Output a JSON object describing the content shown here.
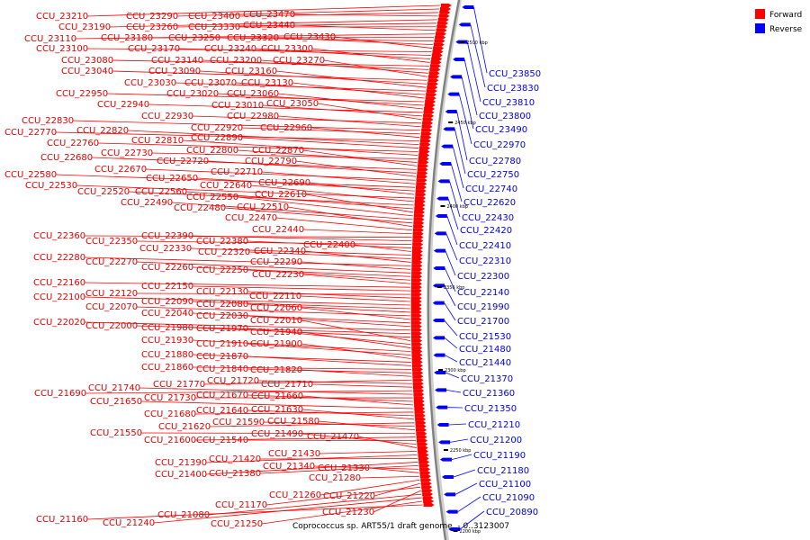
{
  "caption": "Coprococcus sp. ART55/1 draft genome. - 0..3123007",
  "legend": [
    {
      "label": "Forward",
      "color": "#ff0000"
    },
    {
      "label": "Reverse",
      "color": "#0000ff"
    }
  ],
  "ticks": [
    "2500 kbp",
    "2450 kbp",
    "2400 kbp",
    "2350 kbp",
    "2300 kbp",
    "2250 kbp",
    "2200 kbp"
  ],
  "forward_labels": [
    "CCU_23210",
    "CCU_23290",
    "CCU_23400",
    "CCU_23470",
    "CCU_23190",
    "CCU_23260",
    "CCU_23330",
    "CCU_23440",
    "CCU_23110",
    "CCU_23180",
    "CCU_23250",
    "CCU_23320",
    "CCU_23430",
    "CCU_23100",
    "CCU_23170",
    "CCU_23240",
    "CCU_23300",
    "CCU_23080",
    "CCU_23140",
    "CCU_23200",
    "CCU_23270",
    "CCU_23040",
    "CCU_23090",
    "CCU_23160",
    "CCU_23030",
    "CCU_23070",
    "CCU_23130",
    "CCU_22950",
    "CCU_23020",
    "CCU_23060",
    "CCU_22940",
    "CCU_23010",
    "CCU_23050",
    "CCU_22930",
    "CCU_22980",
    "CCU_22830",
    "CCU_22920",
    "CCU_22960",
    "CCU_22770",
    "CCU_22820",
    "CCU_22890",
    "CCU_22760",
    "CCU_22810",
    "CCU_22730",
    "CCU_22800",
    "CCU_22870",
    "CCU_22680",
    "CCU_22720",
    "CCU_22790",
    "CCU_22670",
    "CCU_22710",
    "CCU_22580",
    "CCU_22650",
    "CCU_22690",
    "CCU_22530",
    "CCU_22640",
    "CCU_22520",
    "CCU_22560",
    "CCU_22610",
    "CCU_22550",
    "CCU_22490",
    "CCU_22480",
    "CCU_22510",
    "CCU_22470",
    "CCU_22440",
    "CCU_22360",
    "CCU_22390",
    "CCU_22350",
    "CCU_22380",
    "CCU_22400",
    "CCU_22330",
    "CCU_22320",
    "CCU_22340",
    "CCU_22280",
    "CCU_22290",
    "CCU_22270",
    "CCU_22260",
    "CCU_22250",
    "CCU_22230",
    "CCU_22160",
    "CCU_22150",
    "CCU_22120",
    "CCU_22130",
    "CCU_22110",
    "CCU_22100",
    "CCU_22090",
    "CCU_22080",
    "CCU_22070",
    "CCU_22060",
    "CCU_22040",
    "CCU_22030",
    "CCU_22020",
    "CCU_22000",
    "CCU_21980",
    "CCU_22010",
    "CCU_21970",
    "CCU_21940",
    "CCU_21930",
    "CCU_21910",
    "CCU_21900",
    "CCU_21880",
    "CCU_21870",
    "CCU_21860",
    "CCU_21840",
    "CCU_21820",
    "CCU_21770",
    "CCU_21720",
    "CCU_21710",
    "CCU_21690",
    "CCU_21740",
    "CCU_21730",
    "CCU_21670",
    "CCU_21660",
    "CCU_21650",
    "CCU_21680",
    "CCU_21640",
    "CCU_21630",
    "CCU_21620",
    "CCU_21590",
    "CCU_21580",
    "CCU_21550",
    "CCU_21600",
    "CCU_21540",
    "CCU_21490",
    "CCU_21470",
    "CCU_21430",
    "CCU_21390",
    "CCU_21420",
    "CCU_21400",
    "CCU_21380",
    "CCU_21340",
    "CCU_21330",
    "CCU_21280",
    "CCU_21260",
    "CCU_21220",
    "CCU_21170",
    "CCU_21230",
    "CCU_21080",
    "CCU_21240",
    "CCU_21250",
    "CCU_21160"
  ],
  "reverse_labels": [
    "CCU_23850",
    "CCU_23830",
    "CCU_23810",
    "CCU_23800",
    "CCU_23490",
    "CCU_22970",
    "CCU_22780",
    "CCU_22750",
    "CCU_22740",
    "CCU_22620",
    "CCU_22430",
    "CCU_22420",
    "CCU_22410",
    "CCU_22310",
    "CCU_22300",
    "CCU_22140",
    "CCU_21990",
    "CCU_21700",
    "CCU_21530",
    "CCU_21480",
    "CCU_21440",
    "CCU_21370",
    "CCU_21360",
    "CCU_21350",
    "CCU_21210",
    "CCU_21200",
    "CCU_21190",
    "CCU_21180",
    "CCU_21100",
    "CCU_21090",
    "CCU_20890"
  ]
}
